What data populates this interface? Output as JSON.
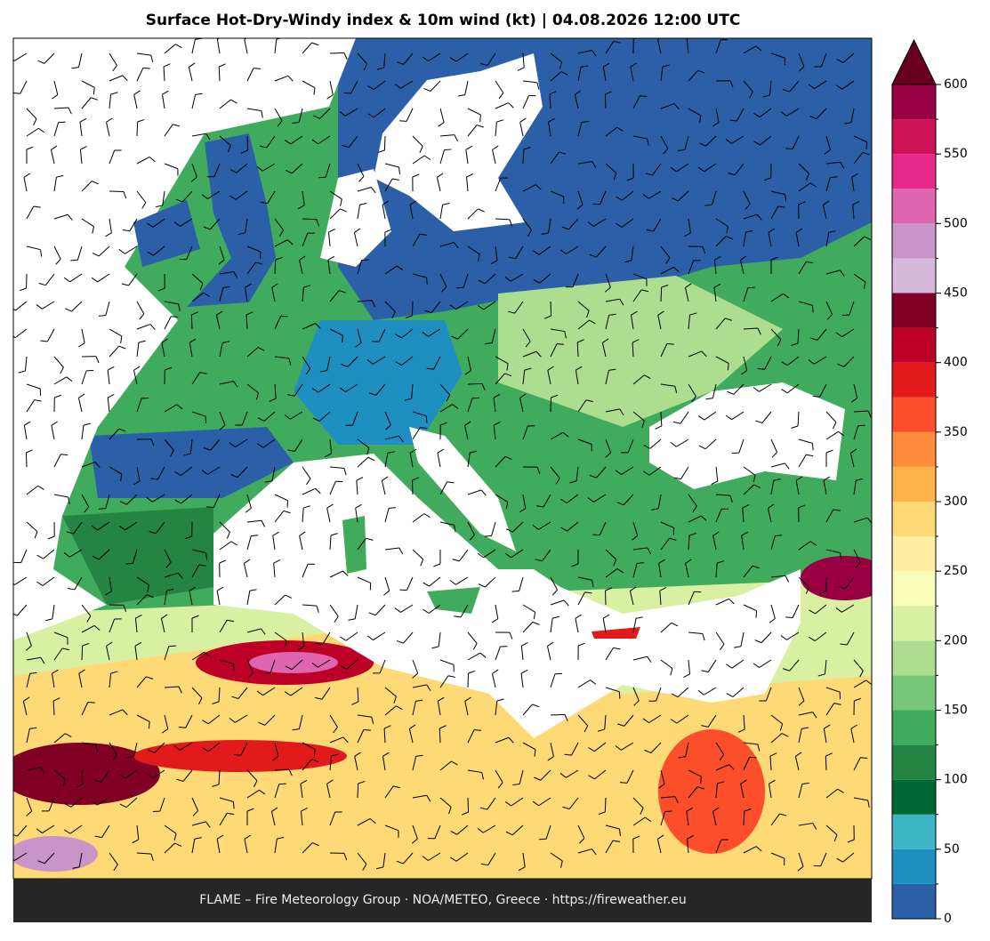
{
  "title": "Surface Hot-Dry-Windy index & 10m wind (kt)  |  04.08.2026 12:00 UTC",
  "footer": "FLAME – Fire Meteorology Group · NOA/METEO, Greece · https://fireweather.eu",
  "colorbar": {
    "levels": [
      0,
      25,
      50,
      75,
      100,
      125,
      150,
      175,
      200,
      225,
      250,
      275,
      300,
      325,
      350,
      375,
      400,
      425,
      450,
      475,
      500,
      525,
      550,
      575,
      600
    ],
    "colors": [
      "#2b5fa8",
      "#1f8fc2",
      "#3db5c4",
      "#006837",
      "#238443",
      "#41ab5d",
      "#78c679",
      "#addd8e",
      "#d9f0a3",
      "#f7fcb9",
      "#ffeda0",
      "#fed976",
      "#feb24c",
      "#fd8d3c",
      "#fc4e2a",
      "#e31a1c",
      "#bd0026",
      "#800026",
      "#d4b9da",
      "#c994c7",
      "#df65b0",
      "#e7298a",
      "#ce1256",
      "#980043"
    ],
    "extend_color": "#67001f",
    "ticks": [
      0,
      50,
      100,
      150,
      200,
      250,
      300,
      350,
      400,
      450,
      500,
      550,
      600
    ]
  }
}
